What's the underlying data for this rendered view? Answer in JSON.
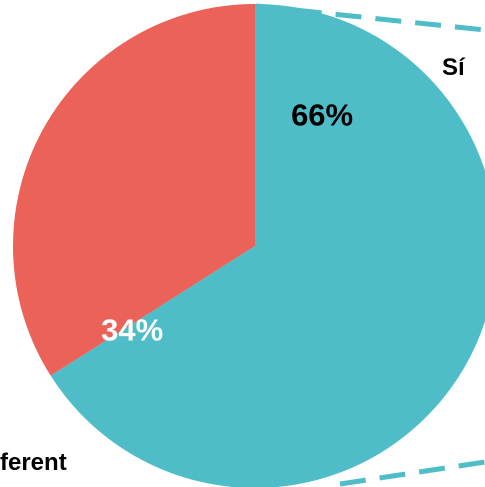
{
  "chart_data": {
    "type": "pie",
    "title": "",
    "slices": [
      {
        "label": "Sí",
        "value": 66,
        "value_label": "66%",
        "color": "#4FBDC8",
        "value_label_color": "#000000"
      },
      {
        "label": "ferent",
        "value": 34,
        "value_label": "34%",
        "color": "#EA6258",
        "value_label_color": "#ffffff"
      }
    ],
    "connector_color": "#4FBDC8",
    "start_angle_deg": 0,
    "direction": "clockwise"
  }
}
